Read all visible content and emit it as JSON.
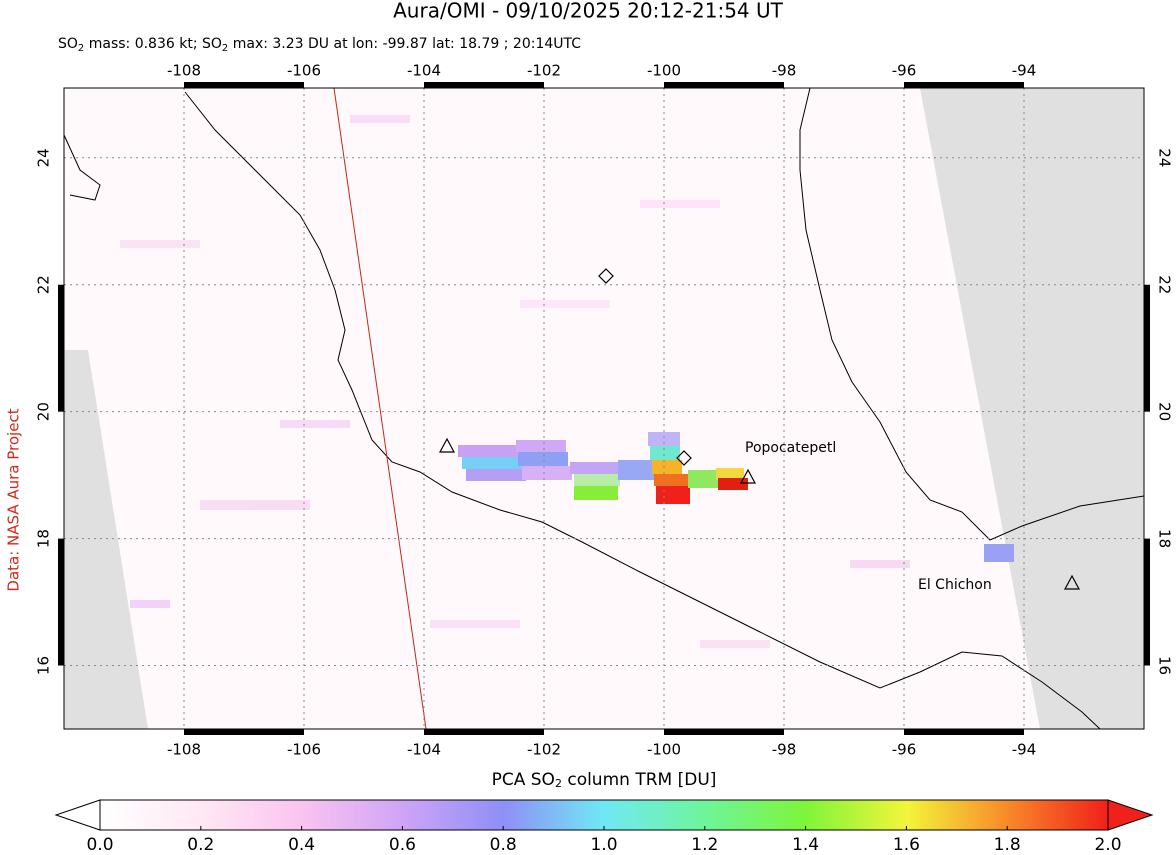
{
  "title": "Aura/OMI - 09/10/2025 20:12-21:54 UT",
  "subtitle": [
    "SO",
    "2",
    " mass: 0.836 kt; SO",
    "2",
    " max: 3.23 DU at lon: -99.87 lat: 18.79 ; 20:14UTC"
  ],
  "map": {
    "xlim": [
      -110,
      -92
    ],
    "ylim": [
      15,
      25.1
    ],
    "xticks": [
      -108,
      -106,
      -104,
      -102,
      -100,
      -98,
      -96,
      -94
    ],
    "yticks": [
      16,
      18,
      20,
      22,
      24
    ],
    "volcanoes": [
      "Popocatepetl",
      "El Chichon"
    ]
  },
  "credit": "Data: NASA Aura Project",
  "colorbar": {
    "label": [
      "PCA SO",
      "2",
      " column TRM [DU]"
    ],
    "lim": [
      0,
      2
    ],
    "ticks": [
      {
        "value": 0,
        "label": "0.0"
      },
      {
        "value": 0.2,
        "label": "0.2"
      },
      {
        "value": 0.4,
        "label": "0.4"
      },
      {
        "value": 0.6,
        "label": "0.6"
      },
      {
        "value": 0.8,
        "label": "0.8"
      },
      {
        "value": 1,
        "label": "1.0"
      },
      {
        "value": 1.2,
        "label": "1.2"
      },
      {
        "value": 1.4,
        "label": "1.4"
      },
      {
        "value": 1.6,
        "label": "1.6"
      },
      {
        "value": 1.8,
        "label": "1.8"
      },
      {
        "value": 2,
        "label": "2.0"
      }
    ]
  }
}
